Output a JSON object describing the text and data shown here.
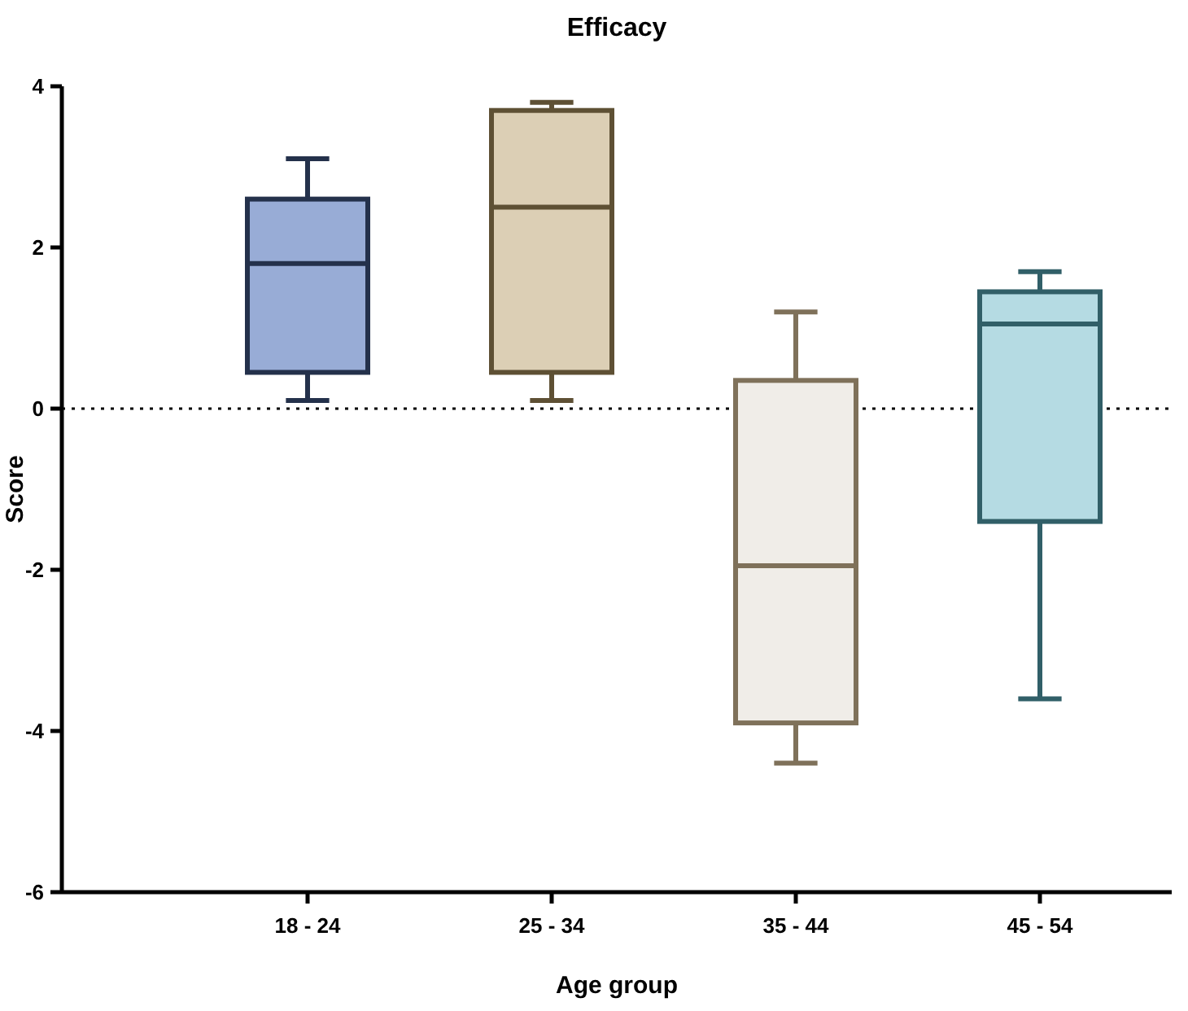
{
  "chart_data": {
    "type": "box",
    "title": "Efficacy",
    "xlabel": "Age group",
    "ylabel": "Score",
    "categories": [
      "18 - 24",
      "25 - 34",
      "35 - 44",
      "45 - 54"
    ],
    "boxes": [
      {
        "low": 0.1,
        "q1": 0.45,
        "median": 1.8,
        "q3": 2.6,
        "high": 3.1
      },
      {
        "low": 0.1,
        "q1": 0.45,
        "median": 2.5,
        "q3": 3.7,
        "high": 3.8
      },
      {
        "low": -4.4,
        "q1": -3.9,
        "median": -1.95,
        "q3": 0.35,
        "high": 1.2
      },
      {
        "low": -3.6,
        "q1": -1.4,
        "median": 1.05,
        "q3": 1.45,
        "high": 1.7
      }
    ],
    "colors": [
      "#98acd6",
      "#dccfb5",
      "#f0ede8",
      "#b5dbe3"
    ],
    "ylim": [
      -6,
      4
    ],
    "yticks": [
      -6,
      -4,
      -2,
      0,
      2,
      4
    ],
    "ref_lines": [
      {
        "axis": "y",
        "value": 0,
        "line_style": "dotted",
        "color": "#000000"
      }
    ],
    "grid": false
  }
}
